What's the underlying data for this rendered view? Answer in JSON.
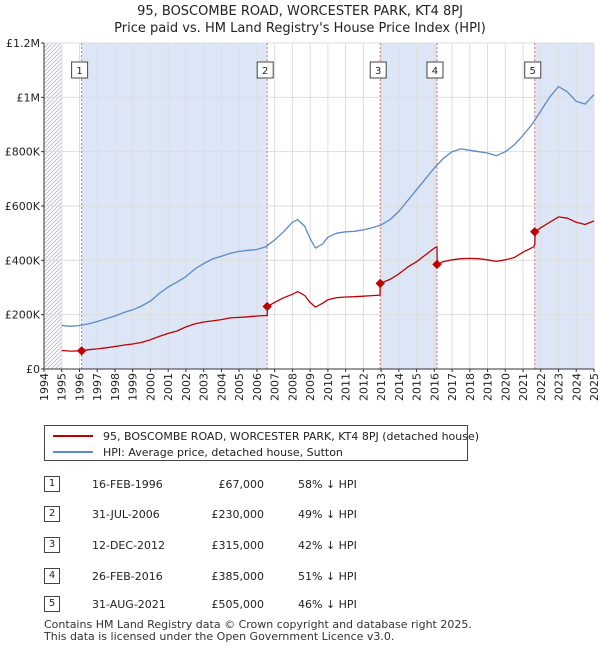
{
  "title_line1": "95, BOSCOMBE ROAD, WORCESTER PARK, KT4 8PJ",
  "title_line2": "Price paid vs. HM Land Registry's House Price Index (HPI)",
  "colors": {
    "property": "#c00000",
    "hpi": "#5b8ac8",
    "shade": "#dde6f7",
    "hatch": "#b0b8c8",
    "grid": "#dddddd",
    "vline": "#e07070"
  },
  "chart_data": {
    "type": "line",
    "x_unit": "year",
    "xlim": [
      1994,
      2025
    ],
    "ylim": [
      0,
      1200000
    ],
    "y_ticks": [
      {
        "value": 0,
        "label": "£0"
      },
      {
        "value": 200000,
        "label": "£200K"
      },
      {
        "value": 400000,
        "label": "£400K"
      },
      {
        "value": 600000,
        "label": "£600K"
      },
      {
        "value": 800000,
        "label": "£800K"
      },
      {
        "value": 1000000,
        "label": "£1M"
      },
      {
        "value": 1200000,
        "label": "£1.2M"
      }
    ],
    "x_ticks": [
      "1994",
      "1995",
      "1996",
      "1997",
      "1998",
      "1999",
      "2000",
      "2001",
      "2002",
      "2003",
      "2004",
      "2005",
      "2006",
      "2007",
      "2008",
      "2009",
      "2010",
      "2011",
      "2012",
      "2013",
      "2014",
      "2015",
      "2016",
      "2017",
      "2018",
      "2019",
      "2020",
      "2021",
      "2022",
      "2023",
      "2024",
      "2025"
    ],
    "data_range": [
      1995.0,
      2025.0
    ],
    "series": [
      {
        "name": "95, BOSCOMBE ROAD, WORCESTER PARK, KT4 8PJ (detached house)",
        "color": "#c00000",
        "points": [
          [
            1995.0,
            68000
          ],
          [
            1995.5,
            66000
          ],
          [
            1996.12,
            67000
          ],
          [
            1996.5,
            71000
          ],
          [
            1997.0,
            74000
          ],
          [
            1997.5,
            78000
          ],
          [
            1998.0,
            83000
          ],
          [
            1998.5,
            88000
          ],
          [
            1999.0,
            92000
          ],
          [
            1999.5,
            98000
          ],
          [
            2000.0,
            108000
          ],
          [
            2000.5,
            120000
          ],
          [
            2001.0,
            131000
          ],
          [
            2001.5,
            140000
          ],
          [
            2002.0,
            155000
          ],
          [
            2002.5,
            166000
          ],
          [
            2003.0,
            173000
          ],
          [
            2003.5,
            177000
          ],
          [
            2004.0,
            182000
          ],
          [
            2004.5,
            188000
          ],
          [
            2005.0,
            190000
          ],
          [
            2005.5,
            192000
          ],
          [
            2006.0,
            195000
          ],
          [
            2006.58,
            197000
          ],
          [
            2006.59,
            230000
          ],
          [
            2007.0,
            245000
          ],
          [
            2007.5,
            262000
          ],
          [
            2008.0,
            275000
          ],
          [
            2008.3,
            285000
          ],
          [
            2008.7,
            270000
          ],
          [
            2009.0,
            245000
          ],
          [
            2009.3,
            228000
          ],
          [
            2009.7,
            242000
          ],
          [
            2010.0,
            255000
          ],
          [
            2010.5,
            263000
          ],
          [
            2011.0,
            265000
          ],
          [
            2011.5,
            266000
          ],
          [
            2012.0,
            268000
          ],
          [
            2012.5,
            270000
          ],
          [
            2012.94,
            272000
          ],
          [
            2012.95,
            315000
          ],
          [
            2013.5,
            330000
          ],
          [
            2014.0,
            350000
          ],
          [
            2014.5,
            375000
          ],
          [
            2015.0,
            395000
          ],
          [
            2015.5,
            420000
          ],
          [
            2016.0,
            445000
          ],
          [
            2016.15,
            450000
          ],
          [
            2016.16,
            385000
          ],
          [
            2016.5,
            395000
          ],
          [
            2017.0,
            402000
          ],
          [
            2017.5,
            406000
          ],
          [
            2018.0,
            407000
          ],
          [
            2018.5,
            406000
          ],
          [
            2019.0,
            402000
          ],
          [
            2019.5,
            396000
          ],
          [
            2020.0,
            402000
          ],
          [
            2020.5,
            410000
          ],
          [
            2021.0,
            430000
          ],
          [
            2021.6,
            450000
          ],
          [
            2021.67,
            460000
          ],
          [
            2021.68,
            505000
          ],
          [
            2022.0,
            520000
          ],
          [
            2022.5,
            540000
          ],
          [
            2023.0,
            560000
          ],
          [
            2023.5,
            555000
          ],
          [
            2024.0,
            540000
          ],
          [
            2024.5,
            532000
          ],
          [
            2025.0,
            545000
          ]
        ]
      },
      {
        "name": "HPI: Average price, detached house, Sutton",
        "color": "#5b8ac8",
        "points": [
          [
            1995.0,
            160000
          ],
          [
            1995.5,
            157000
          ],
          [
            1996.0,
            160000
          ],
          [
            1996.5,
            166000
          ],
          [
            1997.0,
            175000
          ],
          [
            1997.5,
            185000
          ],
          [
            1998.0,
            195000
          ],
          [
            1998.5,
            208000
          ],
          [
            1999.0,
            218000
          ],
          [
            1999.5,
            232000
          ],
          [
            2000.0,
            250000
          ],
          [
            2000.5,
            278000
          ],
          [
            2001.0,
            302000
          ],
          [
            2001.5,
            320000
          ],
          [
            2002.0,
            340000
          ],
          [
            2002.5,
            368000
          ],
          [
            2003.0,
            388000
          ],
          [
            2003.5,
            405000
          ],
          [
            2004.0,
            415000
          ],
          [
            2004.5,
            426000
          ],
          [
            2005.0,
            433000
          ],
          [
            2005.5,
            437000
          ],
          [
            2006.0,
            440000
          ],
          [
            2006.5,
            450000
          ],
          [
            2007.0,
            475000
          ],
          [
            2007.5,
            505000
          ],
          [
            2008.0,
            540000
          ],
          [
            2008.3,
            550000
          ],
          [
            2008.7,
            525000
          ],
          [
            2009.0,
            480000
          ],
          [
            2009.3,
            445000
          ],
          [
            2009.7,
            460000
          ],
          [
            2010.0,
            485000
          ],
          [
            2010.5,
            500000
          ],
          [
            2011.0,
            505000
          ],
          [
            2011.5,
            507000
          ],
          [
            2012.0,
            512000
          ],
          [
            2012.5,
            520000
          ],
          [
            2013.0,
            530000
          ],
          [
            2013.5,
            550000
          ],
          [
            2014.0,
            580000
          ],
          [
            2014.5,
            620000
          ],
          [
            2015.0,
            660000
          ],
          [
            2015.5,
            700000
          ],
          [
            2016.0,
            740000
          ],
          [
            2016.5,
            775000
          ],
          [
            2017.0,
            800000
          ],
          [
            2017.5,
            810000
          ],
          [
            2018.0,
            805000
          ],
          [
            2018.5,
            800000
          ],
          [
            2019.0,
            795000
          ],
          [
            2019.5,
            785000
          ],
          [
            2020.0,
            800000
          ],
          [
            2020.5,
            825000
          ],
          [
            2021.0,
            860000
          ],
          [
            2021.5,
            900000
          ],
          [
            2022.0,
            950000
          ],
          [
            2022.5,
            1000000
          ],
          [
            2023.0,
            1040000
          ],
          [
            2023.5,
            1020000
          ],
          [
            2024.0,
            985000
          ],
          [
            2024.5,
            975000
          ],
          [
            2025.0,
            1010000
          ]
        ]
      }
    ],
    "sales": [
      {
        "num": "1",
        "x": 1996.12,
        "price": 67000
      },
      {
        "num": "2",
        "x": 2006.58,
        "price": 230000
      },
      {
        "num": "3",
        "x": 2012.95,
        "price": 315000
      },
      {
        "num": "4",
        "x": 2016.15,
        "price": 385000
      },
      {
        "num": "5",
        "x": 2021.66,
        "price": 505000
      }
    ]
  },
  "legend": [
    {
      "label": "95, BOSCOMBE ROAD, WORCESTER PARK, KT4 8PJ (detached house)",
      "color": "#c00000"
    },
    {
      "label": "HPI: Average price, detached house, Sutton",
      "color": "#5b8ac8"
    }
  ],
  "transactions": [
    {
      "num": "1",
      "date": "16-FEB-1996",
      "price": "£67,000",
      "hpi": "58% ↓ HPI"
    },
    {
      "num": "2",
      "date": "31-JUL-2006",
      "price": "£230,000",
      "hpi": "49% ↓ HPI"
    },
    {
      "num": "3",
      "date": "12-DEC-2012",
      "price": "£315,000",
      "hpi": "42% ↓ HPI"
    },
    {
      "num": "4",
      "date": "26-FEB-2016",
      "price": "£385,000",
      "hpi": "51% ↓ HPI"
    },
    {
      "num": "5",
      "date": "31-AUG-2021",
      "price": "£505,000",
      "hpi": "46% ↓ HPI"
    }
  ],
  "footer_line1": "Contains HM Land Registry data © Crown copyright and database right 2025.",
  "footer_line2": "This data is licensed under the Open Government Licence v3.0."
}
